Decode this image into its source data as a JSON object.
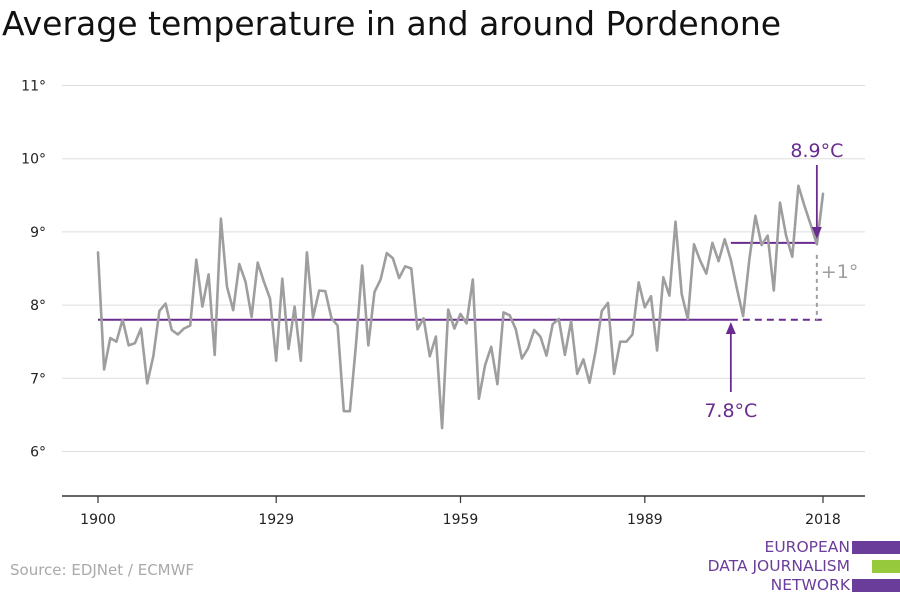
{
  "title": "Average temperature in and around Pordenone",
  "source": "Source: EDJNet / ECMWF",
  "logo": {
    "lines": [
      "EUROPEAN",
      "DATA JOURNALISM",
      "NETWORK"
    ],
    "colors": [
      "#6a3d9a",
      "#97c93d",
      "#6a3d9a"
    ]
  },
  "colors": {
    "series": "#9e9e9e",
    "average": "#6a2c91",
    "grid": "#dddddd",
    "axis": "#333333",
    "tick_text": "#222222",
    "diff_line": "#9e9e9e"
  },
  "chart_data": {
    "type": "line",
    "title": "Average temperature in and around Pordenone",
    "xlabel": "",
    "ylabel": "",
    "xlim": [
      1900,
      2018
    ],
    "ylim": [
      6,
      11
    ],
    "grid": true,
    "x_ticks": [
      1900,
      1929,
      1959,
      1989,
      2018
    ],
    "y_ticks": [
      6,
      7,
      8,
      9,
      10,
      11
    ],
    "y_tick_labels": [
      "6°",
      "7°",
      "8°",
      "9°",
      "10°",
      "11°"
    ],
    "series": [
      {
        "x": [
          1900,
          1901,
          1902,
          1903,
          1904,
          1905,
          1906,
          1907,
          1908,
          1909,
          1910,
          1911,
          1912,
          1913,
          1914,
          1915,
          1916,
          1917,
          1918,
          1919,
          1920,
          1921,
          1922,
          1923,
          1924,
          1925,
          1926,
          1927,
          1928,
          1929,
          1930,
          1931,
          1932,
          1933,
          1934,
          1935,
          1936,
          1937,
          1938,
          1939,
          1940,
          1941,
          1942,
          1943,
          1944,
          1945,
          1946,
          1947,
          1948,
          1949,
          1950,
          1951,
          1952,
          1953,
          1954,
          1955,
          1956,
          1957,
          1958,
          1959,
          1960,
          1961,
          1962,
          1963,
          1964,
          1965,
          1966,
          1967,
          1968,
          1969,
          1970,
          1971,
          1972,
          1973,
          1974,
          1975,
          1976,
          1977,
          1978,
          1979,
          1980,
          1981,
          1982,
          1983,
          1984,
          1985,
          1986,
          1987,
          1988,
          1989,
          1990,
          1991,
          1992,
          1993,
          1994,
          1995,
          1996,
          1997,
          1998,
          1999,
          2000,
          2001,
          2002,
          2003,
          2004,
          2005,
          2006,
          2007,
          2008,
          2009,
          2010,
          2011,
          2012,
          2013,
          2014,
          2015,
          2016,
          2017,
          2018
        ],
        "values": [
          8.72,
          7.12,
          7.55,
          7.5,
          7.8,
          7.45,
          7.48,
          7.68,
          6.93,
          7.3,
          7.92,
          8.02,
          7.66,
          7.6,
          7.68,
          7.72,
          8.62,
          7.98,
          8.42,
          7.32,
          9.18,
          8.25,
          7.93,
          8.56,
          8.32,
          7.84,
          8.58,
          8.32,
          8.09,
          7.24,
          8.36,
          7.4,
          7.98,
          7.24,
          8.72,
          7.83,
          8.2,
          8.19,
          7.82,
          7.72,
          6.55,
          6.55,
          7.48,
          8.54,
          7.45,
          8.18,
          8.35,
          8.71,
          8.64,
          8.37,
          8.53,
          8.5,
          7.67,
          7.82,
          7.3,
          7.57,
          6.32,
          7.94,
          7.68,
          7.88,
          7.75,
          8.35,
          6.72,
          7.18,
          7.43,
          6.92,
          7.9,
          7.86,
          7.67,
          7.27,
          7.41,
          7.66,
          7.57,
          7.31,
          7.74,
          7.81,
          7.32,
          7.78,
          7.06,
          7.26,
          6.94,
          7.38,
          7.92,
          8.03,
          7.06,
          7.5,
          7.5,
          7.6,
          8.31,
          7.97,
          8.12,
          7.38,
          8.38,
          8.13,
          9.14,
          8.15,
          7.81,
          8.83,
          8.61,
          8.43,
          8.85,
          8.6,
          8.9,
          8.62,
          8.22,
          7.85,
          8.62,
          9.22,
          8.82,
          8.95,
          8.2,
          9.4,
          8.95,
          8.66,
          9.63,
          9.35,
          9.1,
          8.83,
          9.52
        ]
      }
    ],
    "average_baseline": {
      "value": 7.8,
      "label": "7.8°C",
      "x_start": 1900,
      "x_end": 2018,
      "solid_until": 2003
    },
    "average_recent": {
      "value": 8.85,
      "label": "8.9°C",
      "x_start": 2003,
      "x_end": 2017
    },
    "difference_label": "+1°"
  }
}
